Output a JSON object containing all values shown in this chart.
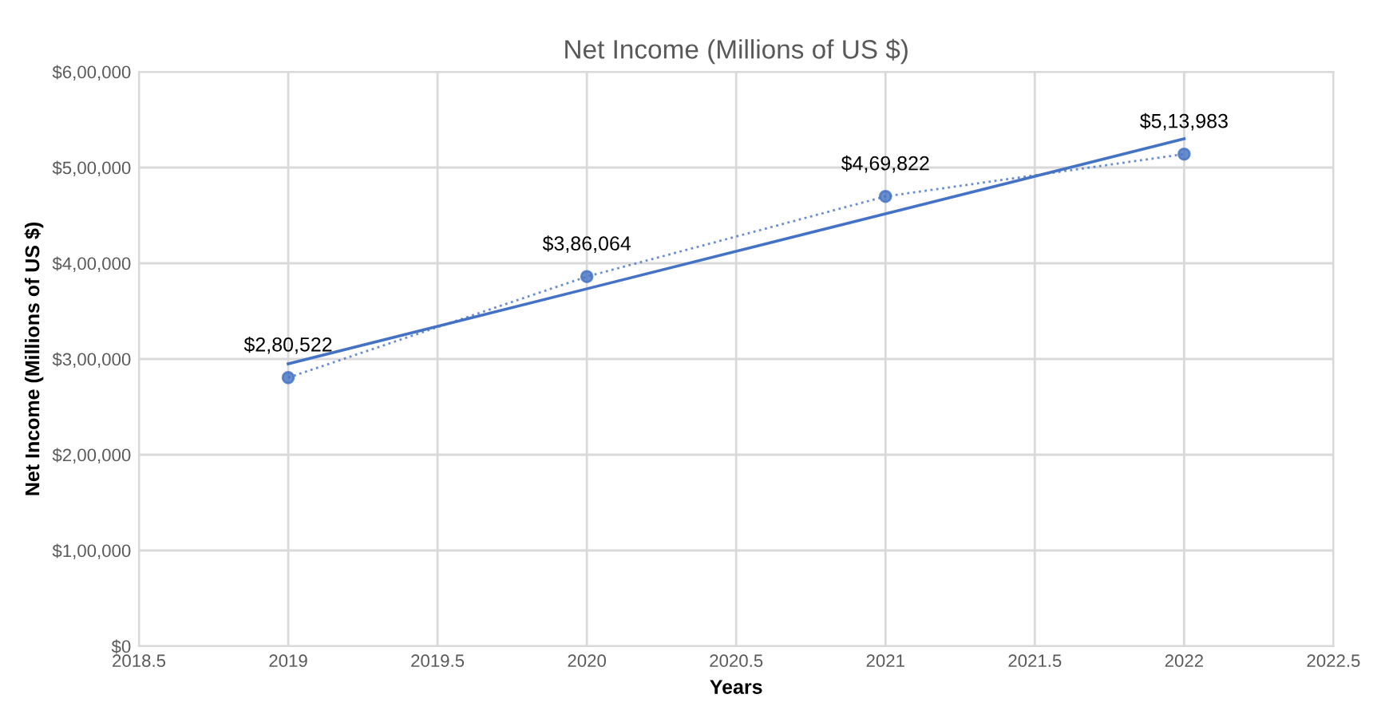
{
  "chart_data": {
    "type": "line",
    "title": "Net Income (Millions of US $)",
    "xlabel": "Years",
    "ylabel": "Net Income (Millions of US $)",
    "x": [
      2019,
      2020,
      2021,
      2022
    ],
    "series": [
      {
        "color": "#4472c4",
        "values": [
          280522,
          386064,
          469822,
          513983
        ],
        "line_style": "dotted",
        "marker": "circle",
        "value_labels": [
          "$2,80,522",
          "$3,86,064",
          "$4,69,822",
          "$5,13,983"
        ]
      },
      {
        "type": "line",
        "color": "#4472c4",
        "x": [
          2019,
          2022
        ],
        "values": [
          295000,
          530000
        ],
        "line_style": "solid",
        "marker": "none"
      }
    ],
    "xlim": [
      2018.5,
      2022.5
    ],
    "xticks": [
      2018.5,
      2019,
      2019.5,
      2020,
      2020.5,
      2021,
      2021.5,
      2022,
      2022.5
    ],
    "ylim": [
      0,
      600000
    ],
    "yticks": [
      {
        "value": 0,
        "label": "$0"
      },
      {
        "value": 100000,
        "label": "$1,00,000"
      },
      {
        "value": 200000,
        "label": "$2,00,000"
      },
      {
        "value": 300000,
        "label": "$3,00,000"
      },
      {
        "value": 400000,
        "label": "$4,00,000"
      },
      {
        "value": 500000,
        "label": "$5,00,000"
      },
      {
        "value": 600000,
        "label": "$6,00,000"
      }
    ],
    "grid": true
  }
}
